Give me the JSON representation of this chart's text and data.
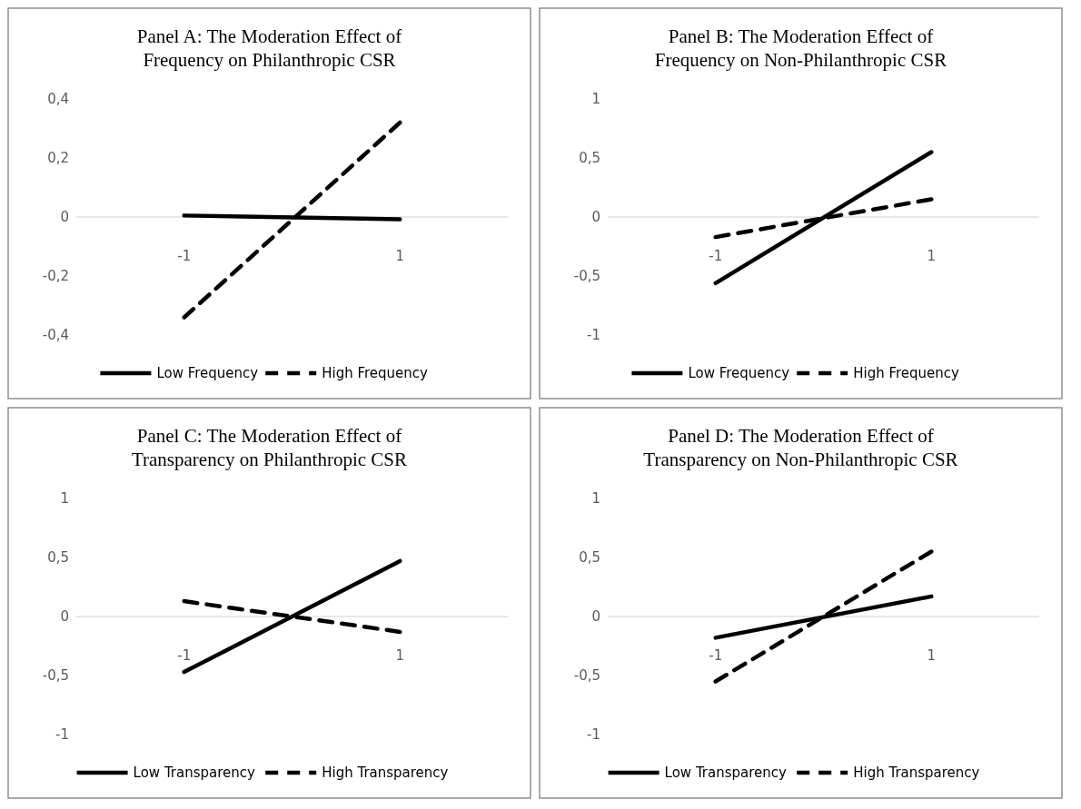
{
  "chart_data": [
    {
      "type": "line",
      "title": "Panel A: The Moderation Effect of\nFrequency on Philanthropic CSR",
      "categories": [
        "-1",
        "1"
      ],
      "ylim": [
        -0.4,
        0.4
      ],
      "yticks": [
        {
          "value": -0.4,
          "label": "-0,4"
        },
        {
          "value": -0.2,
          "label": "-0,2"
        },
        0,
        {
          "value": 0.2,
          "label": "0,2"
        },
        {
          "value": 0.4,
          "label": "0,4"
        }
      ],
      "grid": false,
      "legend": "bottom",
      "marker": "none",
      "series": [
        {
          "name": "Low Frequency",
          "color": "#000000",
          "line_style": "solid",
          "values": [
            0.005,
            -0.008
          ]
        },
        {
          "name": "High Frequency",
          "color": "#000000",
          "line_style": "dashed",
          "values": [
            -0.34,
            0.32
          ]
        }
      ]
    },
    {
      "type": "line",
      "title": "Panel B: The Moderation Effect of\nFrequency on Non-Philanthropic CSR",
      "categories": [
        "-1",
        "1"
      ],
      "ylim": [
        -1,
        1
      ],
      "yticks": [
        -1,
        {
          "value": -0.5,
          "label": "-0,5"
        },
        0,
        {
          "value": 0.5,
          "label": "0,5"
        },
        1
      ],
      "grid": false,
      "legend": "bottom",
      "marker": "none",
      "series": [
        {
          "name": "Low Frequency",
          "color": "#000000",
          "line_style": "solid",
          "values": [
            -0.56,
            0.55
          ]
        },
        {
          "name": "High Frequency",
          "color": "#000000",
          "line_style": "dashed",
          "values": [
            -0.17,
            0.15
          ]
        }
      ]
    },
    {
      "type": "line",
      "title": "Panel C: The Moderation Effect of\nTransparency on Philanthropic CSR",
      "categories": [
        "-1",
        "1"
      ],
      "ylim": [
        -1,
        1
      ],
      "yticks": [
        -1,
        {
          "value": -0.5,
          "label": "-0,5"
        },
        0,
        {
          "value": 0.5,
          "label": "0,5"
        },
        1
      ],
      "grid": false,
      "legend": "bottom",
      "marker": "none",
      "series": [
        {
          "name": "Low Transparency",
          "color": "#000000",
          "line_style": "solid",
          "values": [
            -0.47,
            0.47
          ]
        },
        {
          "name": "High Transparency",
          "color": "#000000",
          "line_style": "dashed",
          "values": [
            0.13,
            -0.13
          ]
        }
      ]
    },
    {
      "type": "line",
      "title": "Panel D: The Moderation Effect of\nTransparency on Non-Philanthropic CSR",
      "categories": [
        "-1",
        "1"
      ],
      "ylim": [
        -1,
        1
      ],
      "yticks": [
        -1,
        {
          "value": -0.5,
          "label": "-0,5"
        },
        0,
        {
          "value": 0.5,
          "label": "0,5"
        },
        1
      ],
      "grid": false,
      "legend": "bottom",
      "marker": "none",
      "series": [
        {
          "name": "Low Transparency",
          "color": "#000000",
          "line_style": "solid",
          "values": [
            -0.18,
            0.17
          ]
        },
        {
          "name": "High Transparency",
          "color": "#000000",
          "line_style": "dashed",
          "values": [
            -0.55,
            0.55
          ]
        }
      ]
    }
  ]
}
